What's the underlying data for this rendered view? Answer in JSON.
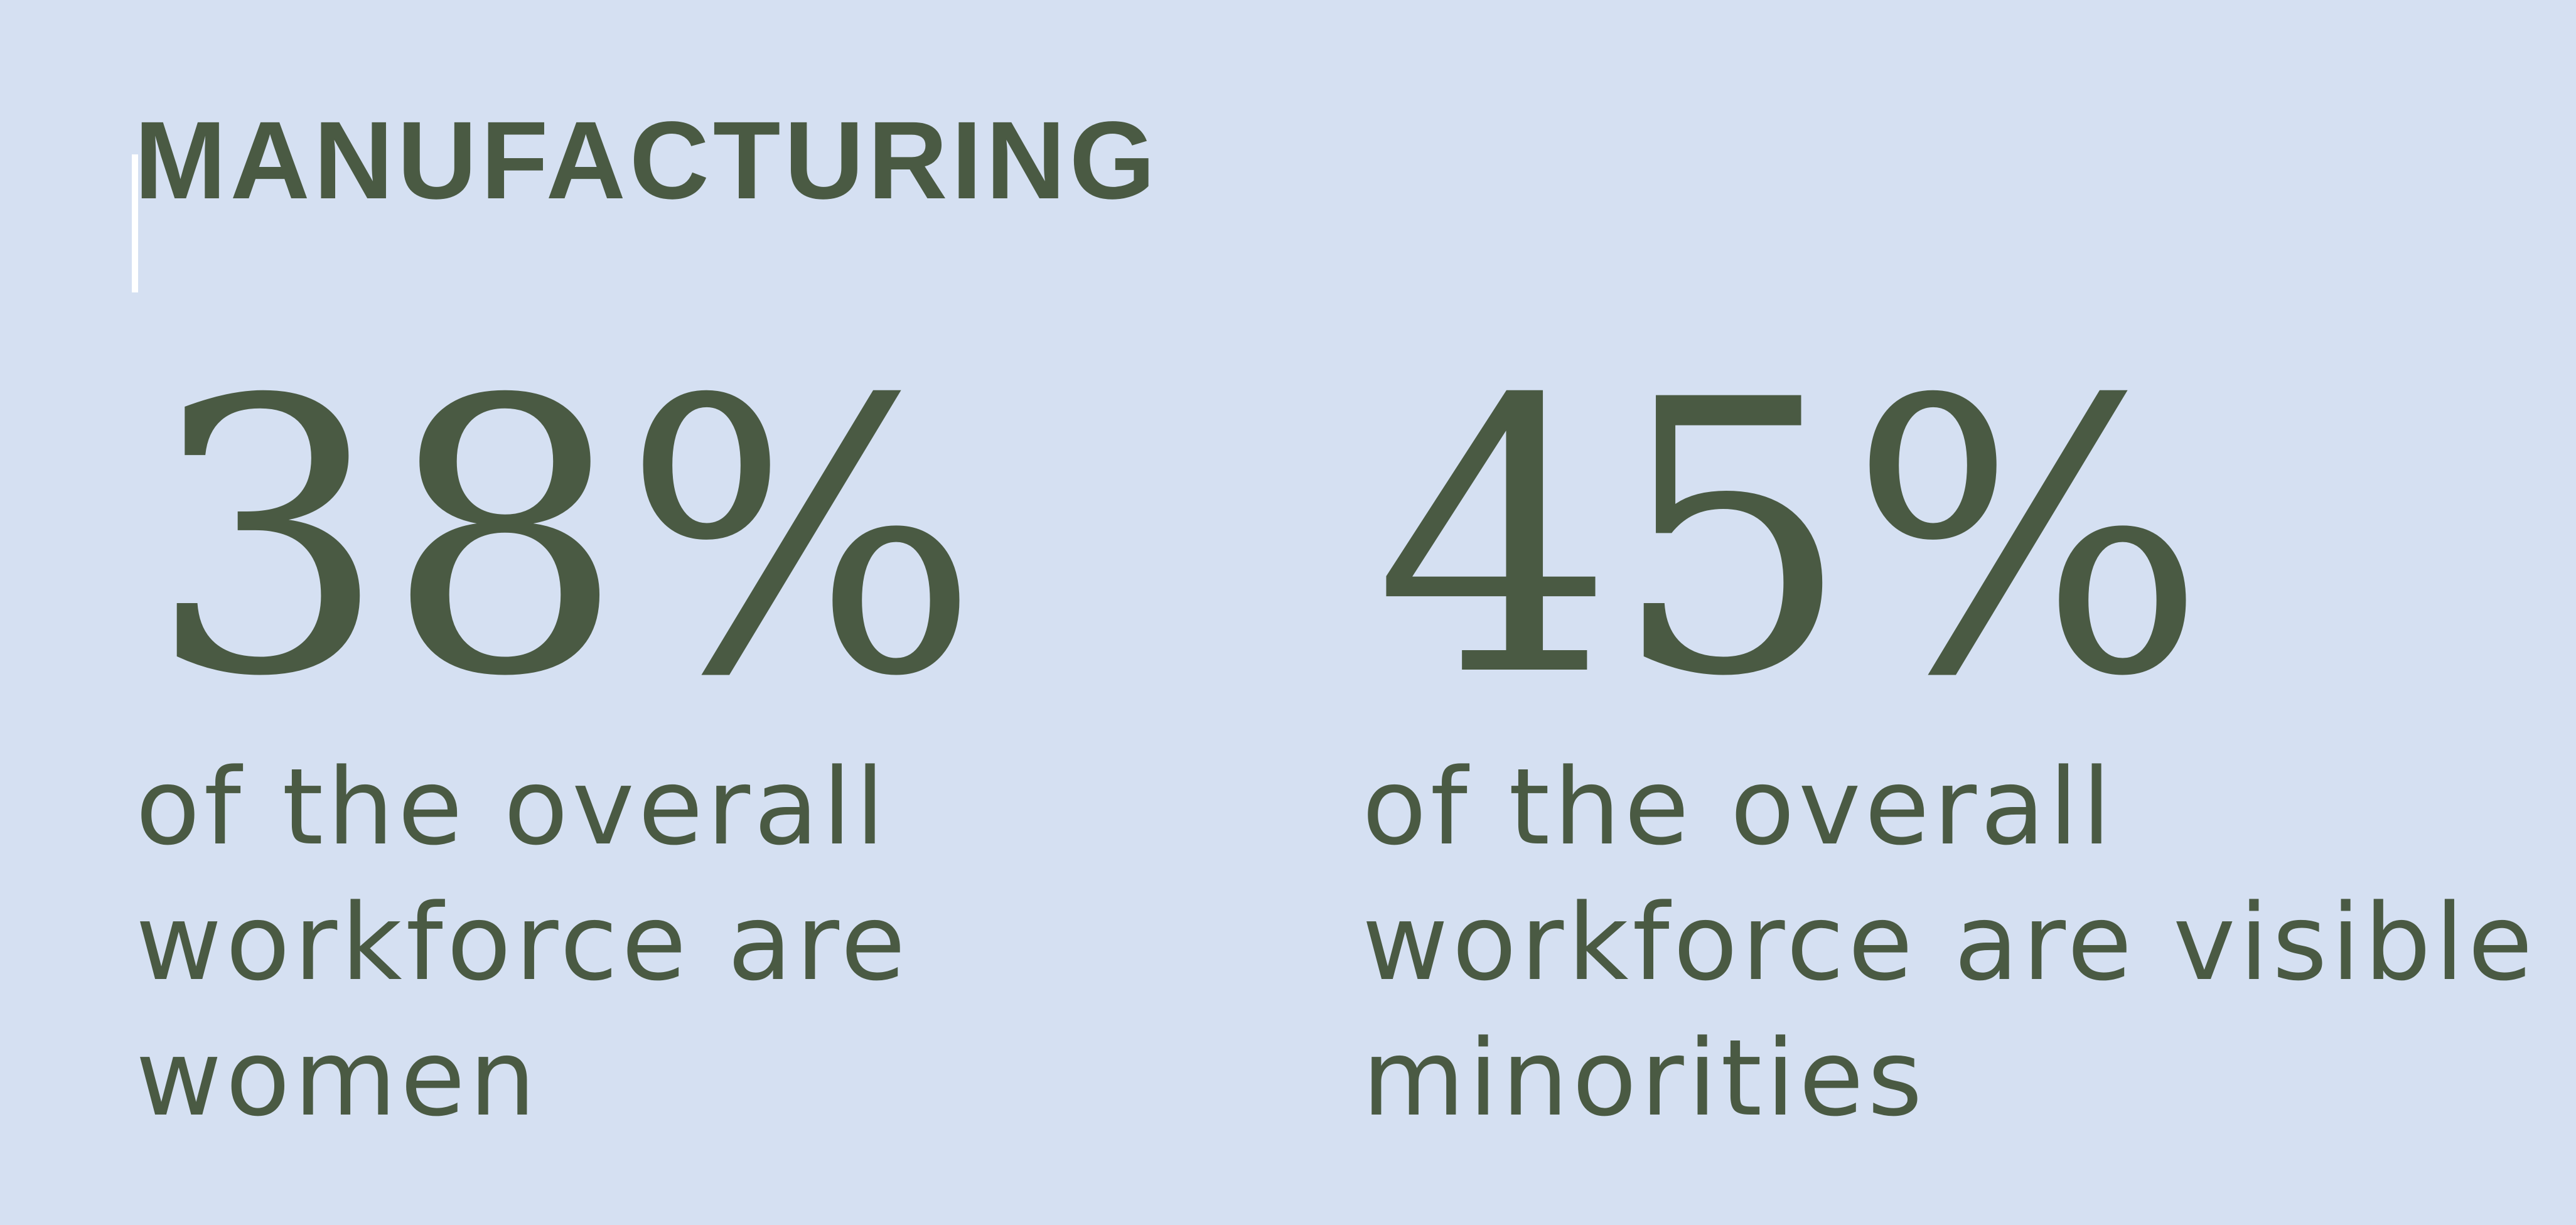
{
  "heading": "MANUFACTURING",
  "stats": [
    {
      "value": "38%",
      "description_lines": [
        "of the overall",
        "workforce are",
        "women"
      ]
    },
    {
      "value": "45%",
      "description_lines": [
        "of the overall",
        "workforce are visible",
        "minorities"
      ]
    }
  ],
  "colors": {
    "background": "#d5e0f2",
    "text": "#4a5a43"
  }
}
